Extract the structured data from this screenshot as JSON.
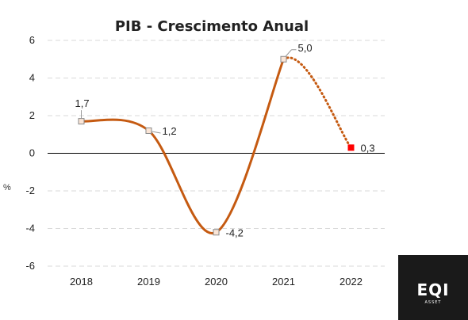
{
  "chart_data": {
    "type": "line",
    "title": "PIB - Crescimento Anual",
    "ylabel": "%",
    "xlabel": "",
    "categories": [
      "2018",
      "2019",
      "2020",
      "2021",
      "2022"
    ],
    "values": [
      1.7,
      1.2,
      -4.2,
      5.0,
      0.3
    ],
    "data_labels": [
      "1,7",
      "1,2",
      "-4,2",
      "5,0",
      "0,3"
    ],
    "ylim": [
      -6,
      6
    ],
    "yticks": [
      6,
      4,
      2,
      0,
      -2,
      -4,
      -6
    ],
    "ytick_labels": [
      "6",
      "4",
      "2",
      "0",
      "-2",
      "-4",
      "-6"
    ],
    "grid": "horizontal dashed",
    "last_segment_style": "dotted",
    "colors": {
      "line": "#c55a11",
      "marker_fill": "#fbe5d6",
      "marker_edge": "#8a8a8a",
      "last_marker": "#ff0000",
      "zero_line": "#000000",
      "grid": "#d9d9d9"
    }
  },
  "logo": {
    "main": "EQI",
    "sub": "ASSET"
  }
}
